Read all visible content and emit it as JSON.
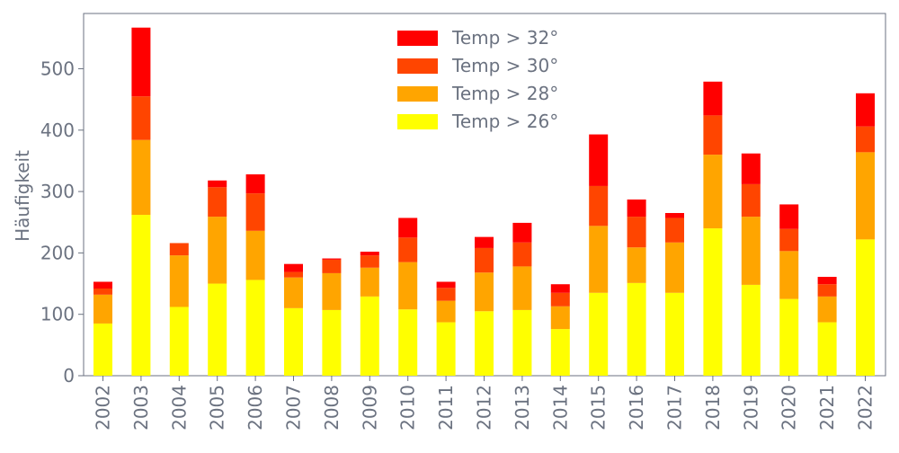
{
  "chart_data": {
    "type": "bar",
    "stacked": true,
    "title": "",
    "xlabel": "",
    "ylabel": "Häufigkeit",
    "ylim": [
      0,
      590
    ],
    "yticks": [
      0,
      100,
      200,
      300,
      400,
      500
    ],
    "grid": false,
    "legend_position": "top-center",
    "categories": [
      "2002",
      "2003",
      "2004",
      "2005",
      "2006",
      "2007",
      "2008",
      "2009",
      "2010",
      "2011",
      "2012",
      "2013",
      "2014",
      "2015",
      "2016",
      "2017",
      "2018",
      "2019",
      "2020",
      "2021",
      "2022"
    ],
    "series": [
      {
        "name": "Temp > 26°",
        "color": "#ffff00",
        "values": [
          85,
          262,
          112,
          150,
          156,
          110,
          107,
          129,
          108,
          87,
          105,
          107,
          76,
          135,
          151,
          135,
          240,
          148,
          125,
          87,
          222
        ]
      },
      {
        "name": "Temp > 28°",
        "color": "#ffa500",
        "values": [
          47,
          122,
          84,
          109,
          80,
          50,
          60,
          47,
          77,
          35,
          63,
          71,
          37,
          109,
          58,
          82,
          120,
          111,
          78,
          42,
          142
        ]
      },
      {
        "name": "Temp > 30°",
        "color": "#ff4500",
        "values": [
          10,
          71,
          20,
          48,
          61,
          9,
          22,
          20,
          40,
          21,
          40,
          39,
          22,
          65,
          50,
          40,
          64,
          53,
          36,
          20,
          42
        ]
      },
      {
        "name": "Temp > 32°",
        "color": "#ff0000",
        "values": [
          11,
          112,
          0,
          11,
          31,
          13,
          2,
          6,
          32,
          10,
          18,
          32,
          14,
          84,
          28,
          8,
          55,
          50,
          40,
          12,
          54
        ]
      }
    ]
  }
}
